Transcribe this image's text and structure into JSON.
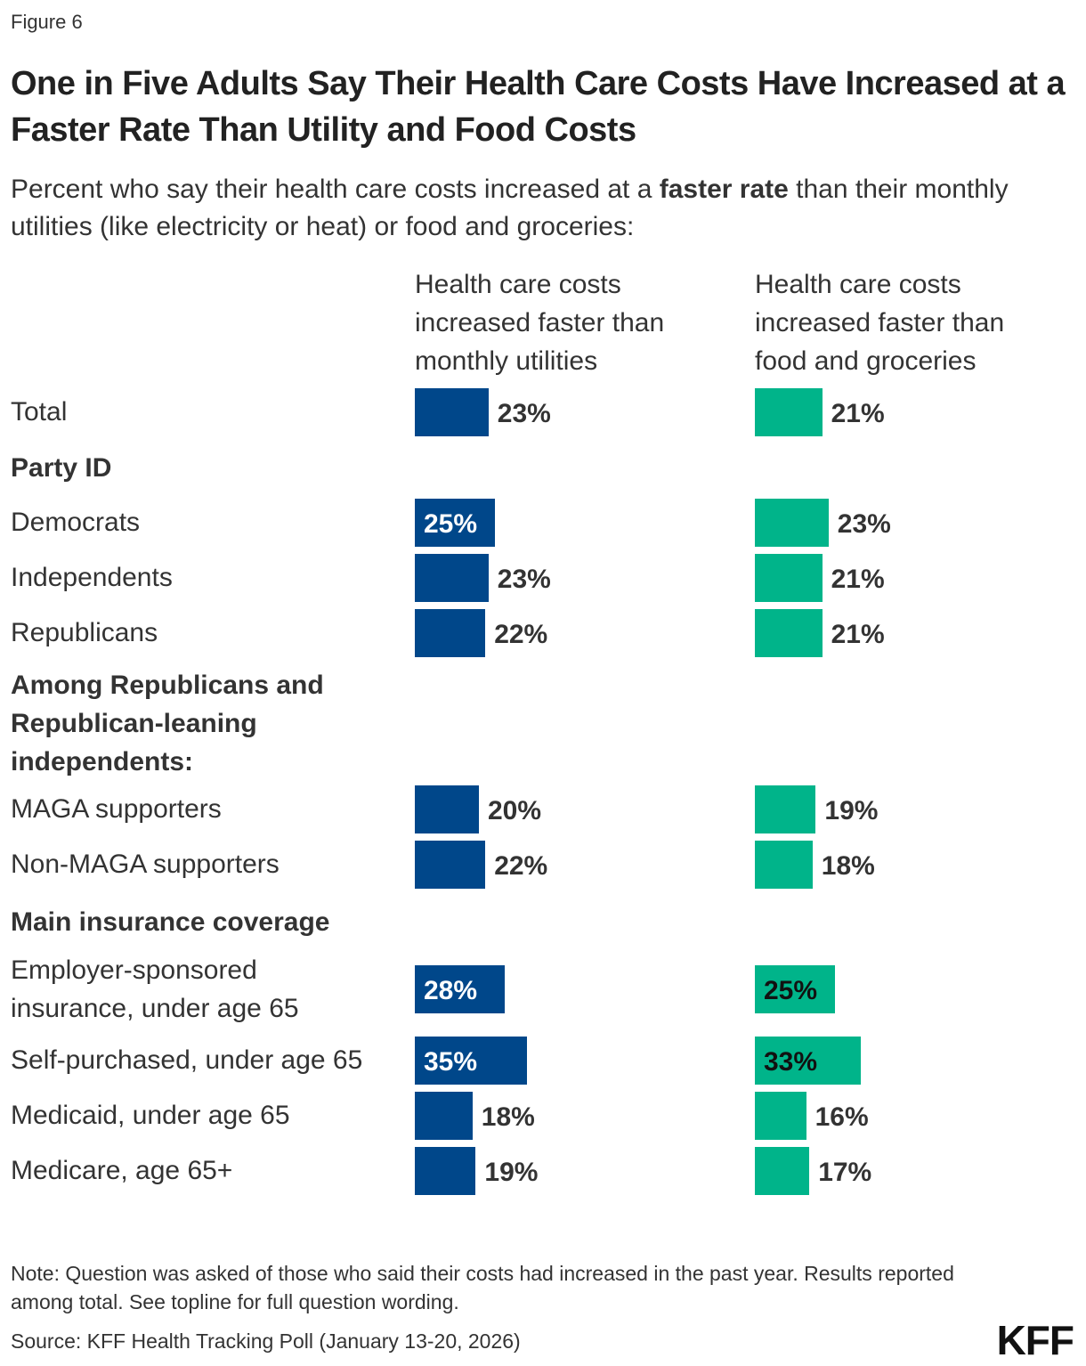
{
  "figure_label": "Figure 6",
  "title": "One in Five Adults Say Their Health Care Costs Have Increased at a Faster Rate Than Utility and Food Costs",
  "subtitle": {
    "before": "Percent who say their health care costs increased at a ",
    "bold": "faster rate",
    "after": " than their monthly utilities (like electricity or heat) or food and groceries:"
  },
  "colors": {
    "utilities": "#00478a",
    "food": "#00b48a"
  },
  "chart_data": {
    "type": "bar",
    "orientation": "horizontal",
    "series": [
      {
        "name": "Health care costs increased faster than monthly utilities",
        "values": [
          23,
          25,
          23,
          22,
          20,
          22,
          28,
          35,
          18,
          19
        ]
      },
      {
        "name": "Health care costs increased faster than food and groceries",
        "values": [
          21,
          23,
          21,
          21,
          19,
          18,
          25,
          33,
          16,
          17
        ]
      }
    ],
    "categories": [
      "Total",
      "Democrats",
      "Independents",
      "Republicans",
      "MAGA supporters",
      "Non-MAGA supporters",
      "Employer-sponsored insurance, under age 65",
      "Self-purchased, under age 65",
      "Medicaid, under age 65",
      "Medicare, age 65+"
    ],
    "groups": [
      "Party ID",
      "Among Republicans and Republican-leaning independents:",
      "Main insurance coverage"
    ],
    "value_suffix": "%",
    "xlim": [
      0,
      100
    ],
    "grid": false
  },
  "note": "Note: Question was asked of those who said their costs had increased in the past year. Results reported among total. See topline for full question wording.",
  "source": "Source: KFF Health Tracking Poll (January 13-20, 2026)",
  "logo": "KFF"
}
